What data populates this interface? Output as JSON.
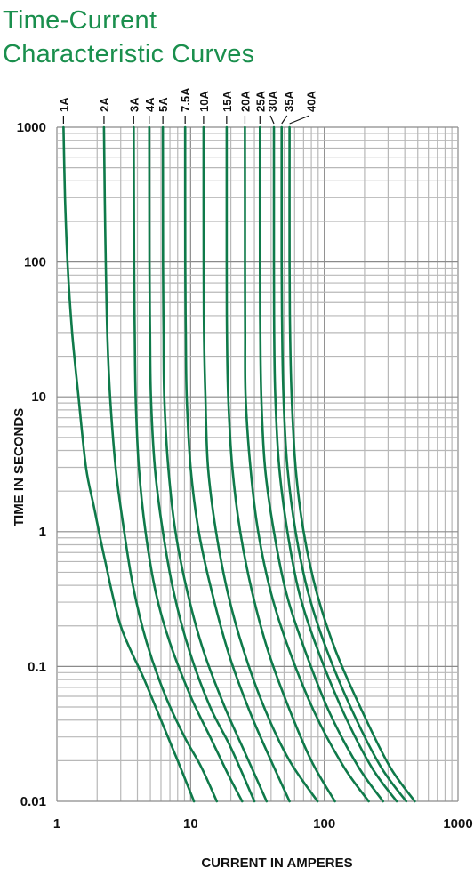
{
  "title_line1": "Time-Current",
  "title_line2": "Characteristic Curves",
  "colors": {
    "title": "#1a8f4d",
    "curve": "#0f7a4a",
    "grid": "#b8b8b8",
    "gridMajor": "#8a8a8a",
    "text": "#111111"
  },
  "chart_data": {
    "type": "line",
    "xlabel": "CURRENT IN AMPERES",
    "ylabel": "TIME IN SECONDS",
    "xscale": "log",
    "yscale": "log",
    "xlim": [
      1,
      1000
    ],
    "ylim": [
      0.01,
      1000
    ],
    "grid": true,
    "legend": "labels at top of each curve",
    "x_ticks": [
      "1",
      "10",
      "100",
      "1000"
    ],
    "y_ticks": [
      "1000",
      "100",
      "10",
      "1",
      "0.1",
      "0.01"
    ],
    "series": [
      {
        "name": "1A",
        "points": [
          [
            1.12,
            1000
          ],
          [
            1.15,
            300
          ],
          [
            1.2,
            100
          ],
          [
            1.3,
            30
          ],
          [
            1.45,
            10
          ],
          [
            1.65,
            3
          ],
          [
            1.9,
            1.5
          ],
          [
            2.3,
            0.6
          ],
          [
            3.0,
            0.2
          ],
          [
            4.5,
            0.08
          ],
          [
            6,
            0.04
          ],
          [
            8,
            0.02
          ],
          [
            10.6,
            0.01
          ]
        ]
      },
      {
        "name": "2A",
        "points": [
          [
            2.25,
            1000
          ],
          [
            2.28,
            300
          ],
          [
            2.32,
            100
          ],
          [
            2.38,
            30
          ],
          [
            2.5,
            10
          ],
          [
            2.75,
            3
          ],
          [
            3.1,
            1.2
          ],
          [
            3.7,
            0.4
          ],
          [
            4.7,
            0.15
          ],
          [
            6.5,
            0.06
          ],
          [
            9,
            0.03
          ],
          [
            12,
            0.018
          ],
          [
            15.7,
            0.01
          ]
        ]
      },
      {
        "name": "3A",
        "points": [
          [
            3.75,
            1000
          ],
          [
            3.78,
            100
          ],
          [
            3.82,
            30
          ],
          [
            3.88,
            10
          ],
          [
            4.1,
            3
          ],
          [
            4.6,
            1
          ],
          [
            5.5,
            0.35
          ],
          [
            7,
            0.15
          ],
          [
            10,
            0.06
          ],
          [
            14,
            0.03
          ],
          [
            19,
            0.016
          ],
          [
            24.3,
            0.01
          ]
        ]
      },
      {
        "name": "4A",
        "points": [
          [
            4.9,
            1000
          ],
          [
            4.92,
            100
          ],
          [
            4.97,
            30
          ],
          [
            5.05,
            10
          ],
          [
            5.4,
            3
          ],
          [
            6.2,
            1
          ],
          [
            7.5,
            0.35
          ],
          [
            9.8,
            0.13
          ],
          [
            14,
            0.05
          ],
          [
            20,
            0.025
          ],
          [
            30,
            0.01
          ]
        ]
      },
      {
        "name": "5A",
        "points": [
          [
            6.2,
            1000
          ],
          [
            6.22,
            100
          ],
          [
            6.27,
            30
          ],
          [
            6.35,
            10
          ],
          [
            6.8,
            3
          ],
          [
            7.7,
            1
          ],
          [
            9.5,
            0.35
          ],
          [
            12.5,
            0.13
          ],
          [
            18,
            0.05
          ],
          [
            26,
            0.022
          ],
          [
            37,
            0.01
          ]
        ]
      },
      {
        "name": "7.5A",
        "points": [
          [
            9.1,
            1000
          ],
          [
            9.12,
            100
          ],
          [
            9.2,
            30
          ],
          [
            9.35,
            10
          ],
          [
            10,
            3
          ],
          [
            11.5,
            1
          ],
          [
            14.5,
            0.35
          ],
          [
            19.5,
            0.12
          ],
          [
            28,
            0.045
          ],
          [
            40,
            0.02
          ],
          [
            55,
            0.01
          ]
        ]
      },
      {
        "name": "10A",
        "points": [
          [
            12.5,
            1000
          ],
          [
            12.52,
            100
          ],
          [
            12.6,
            30
          ],
          [
            12.9,
            10
          ],
          [
            13.5,
            3
          ],
          [
            15.5,
            1
          ],
          [
            19,
            0.35
          ],
          [
            25,
            0.13
          ],
          [
            36,
            0.048
          ],
          [
            55,
            0.02
          ],
          [
            89,
            0.01
          ]
        ]
      },
      {
        "name": "15A",
        "points": [
          [
            18.6,
            1000
          ],
          [
            18.62,
            100
          ],
          [
            18.7,
            30
          ],
          [
            19.1,
            10
          ],
          [
            20.5,
            3
          ],
          [
            23.5,
            1
          ],
          [
            29,
            0.35
          ],
          [
            38,
            0.13
          ],
          [
            54,
            0.05
          ],
          [
            80,
            0.02
          ],
          [
            120,
            0.01
          ]
        ]
      },
      {
        "name": "20A",
        "points": [
          [
            25.5,
            1000
          ],
          [
            25.52,
            100
          ],
          [
            25.6,
            30
          ],
          [
            25.8,
            10
          ],
          [
            28,
            3
          ],
          [
            32,
            1
          ],
          [
            40,
            0.35
          ],
          [
            55,
            0.13
          ],
          [
            85,
            0.045
          ],
          [
            140,
            0.018
          ],
          [
            215,
            0.01
          ]
        ]
      },
      {
        "name": "25A",
        "points": [
          [
            33,
            1000
          ],
          [
            33,
            100
          ],
          [
            33.2,
            30
          ],
          [
            33.8,
            10
          ],
          [
            36,
            3
          ],
          [
            42,
            1
          ],
          [
            52,
            0.35
          ],
          [
            72,
            0.13
          ],
          [
            110,
            0.045
          ],
          [
            180,
            0.018
          ],
          [
            275,
            0.01
          ]
        ]
      },
      {
        "name": "30A",
        "points": [
          [
            42,
            1000
          ],
          [
            42,
            100
          ],
          [
            42.2,
            30
          ],
          [
            43,
            10
          ],
          [
            46,
            3
          ],
          [
            53,
            1
          ],
          [
            65,
            0.35
          ],
          [
            90,
            0.13
          ],
          [
            140,
            0.045
          ],
          [
            225,
            0.018
          ],
          [
            348,
            0.01
          ]
        ]
      },
      {
        "name": "35A",
        "points": [
          [
            48,
            1000
          ],
          [
            48,
            100
          ],
          [
            48.4,
            30
          ],
          [
            49.5,
            10
          ],
          [
            53,
            3
          ],
          [
            61,
            1
          ],
          [
            76,
            0.35
          ],
          [
            105,
            0.13
          ],
          [
            165,
            0.045
          ],
          [
            265,
            0.018
          ],
          [
            410,
            0.01
          ]
        ]
      },
      {
        "name": "40A",
        "points": [
          [
            55,
            1000
          ],
          [
            55,
            100
          ],
          [
            55.5,
            30
          ],
          [
            57,
            10
          ],
          [
            61,
            3
          ],
          [
            70,
            1
          ],
          [
            88,
            0.35
          ],
          [
            122,
            0.13
          ],
          [
            195,
            0.045
          ],
          [
            310,
            0.018
          ],
          [
            475,
            0.01
          ]
        ]
      }
    ]
  }
}
